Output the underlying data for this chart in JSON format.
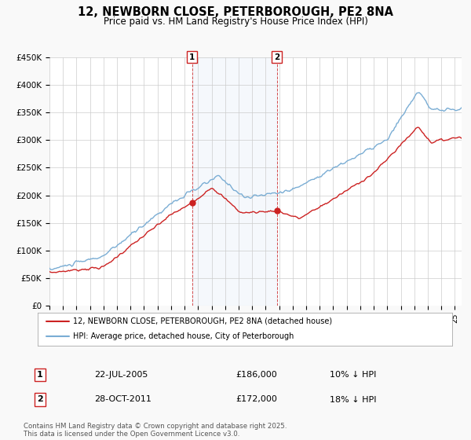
{
  "title": "12, NEWBORN CLOSE, PETERBOROUGH, PE2 8NA",
  "subtitle": "Price paid vs. HM Land Registry's House Price Index (HPI)",
  "title_fontsize": 10.5,
  "subtitle_fontsize": 8.5,
  "bg_color": "#f9f9f9",
  "plot_bg_color": "#ffffff",
  "grid_color": "#cccccc",
  "hpi_color": "#7aadd4",
  "price_color": "#cc2222",
  "ylim": [
    0,
    450000
  ],
  "yticks": [
    0,
    50000,
    100000,
    150000,
    200000,
    250000,
    300000,
    350000,
    400000,
    450000
  ],
  "ytick_labels": [
    "£0",
    "£50K",
    "£100K",
    "£150K",
    "£200K",
    "£250K",
    "£300K",
    "£350K",
    "£400K",
    "£450K"
  ],
  "xlim_start": 1995,
  "xlim_end": 2025.5,
  "marker1_date": 2005.55,
  "marker1_price": 186000,
  "marker1_label": "1",
  "marker1_date_str": "22-JUL-2005",
  "marker1_price_str": "£186,000",
  "marker1_pct": "10% ↓ HPI",
  "marker2_date": 2011.83,
  "marker2_price": 172000,
  "marker2_label": "2",
  "marker2_date_str": "28-OCT-2011",
  "marker2_price_str": "£172,000",
  "marker2_pct": "18% ↓ HPI",
  "legend_label1": "12, NEWBORN CLOSE, PETERBOROUGH, PE2 8NA (detached house)",
  "legend_label2": "HPI: Average price, detached house, City of Peterborough",
  "footer": "Contains HM Land Registry data © Crown copyright and database right 2025.\nThis data is licensed under the Open Government Licence v3.0.",
  "shaded_region_alpha": 0.12,
  "shaded_color": "#b0c8e8"
}
